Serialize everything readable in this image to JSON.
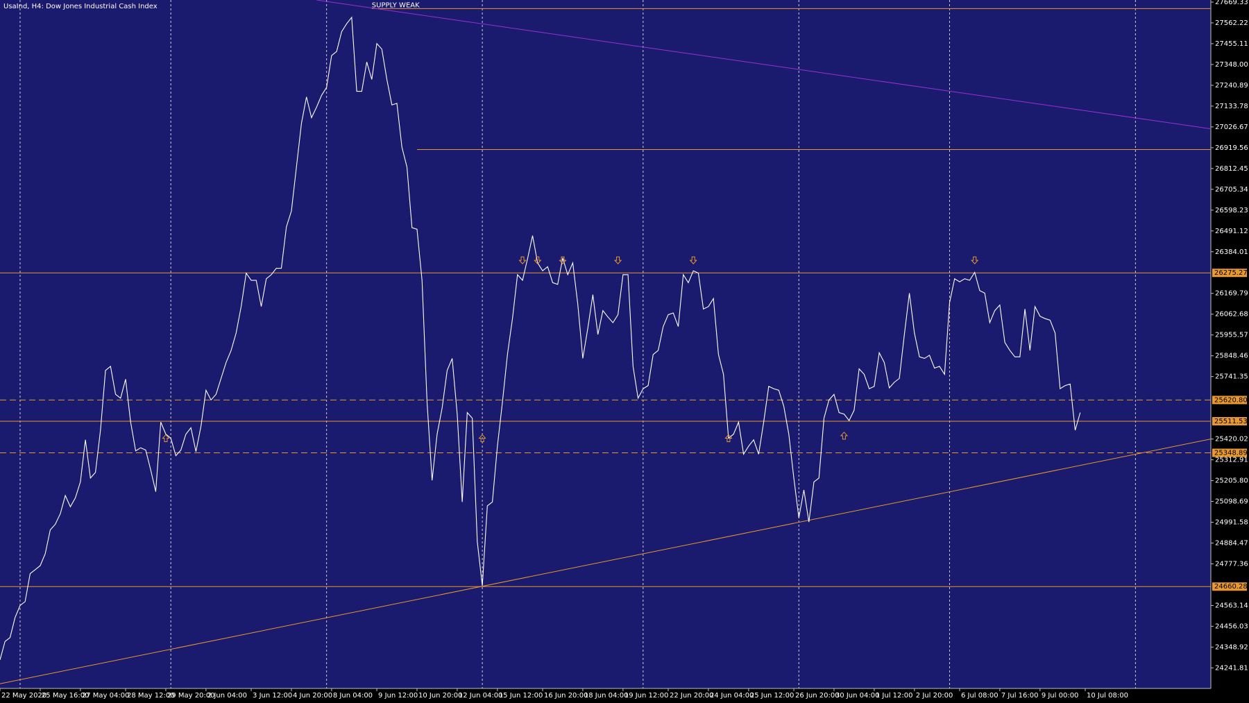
{
  "chart_data": {
    "type": "line",
    "title": "UsaInd, H4:  Dow Jones Industrial Cash Index",
    "color": "#ffffff",
    "xlim": [
      0,
      241
    ],
    "ylim": [
      24136,
      27680
    ],
    "values": [
      24283,
      24378,
      24398,
      24501,
      24563,
      24583,
      24727,
      24747,
      24768,
      24829,
      24952,
      24981,
      25035,
      25129,
      25071,
      25117,
      25199,
      25416,
      25219,
      25248,
      25465,
      25773,
      25794,
      25650,
      25630,
      25728,
      25507,
      25359,
      25375,
      25363,
      25260,
      25149,
      25507,
      25445,
      25424,
      25334,
      25363,
      25445,
      25478,
      25355,
      25486,
      25671,
      25621,
      25650,
      25732,
      25814,
      25876,
      25966,
      26102,
      26274,
      26237,
      26237,
      26102,
      26245,
      26266,
      26299,
      26299,
      26512,
      26594,
      26820,
      27045,
      27181,
      27074,
      27128,
      27189,
      27230,
      27394,
      27415,
      27517,
      27558,
      27591,
      27210,
      27210,
      27361,
      27271,
      27456,
      27427,
      27271,
      27140,
      27148,
      26922,
      26820,
      26508,
      26500,
      26237,
      25609,
      25207,
      25445,
      25580,
      25773,
      25835,
      25548,
      25096,
      25556,
      25527,
      24891,
      24665,
      25076,
      25096,
      25383,
      25609,
      25855,
      26040,
      26266,
      26237,
      26348,
      26467,
      26327,
      26286,
      26307,
      26225,
      26216,
      26352,
      26266,
      26327,
      26114,
      25835,
      25991,
      26163,
      25958,
      26081,
      26048,
      26019,
      26060,
      26266,
      26266,
      25794,
      25630,
      25679,
      25695,
      25855,
      25876,
      25999,
      26060,
      26069,
      25999,
      26266,
      26225,
      26286,
      26274,
      26089,
      26102,
      26143,
      25855,
      25753,
      25424,
      25445,
      25507,
      25342,
      25383,
      25416,
      25342,
      25507,
      25691,
      25679,
      25671,
      25589,
      25445,
      25219,
      25014,
      25158,
      24993,
      25199,
      25219,
      25527,
      25621,
      25650,
      25556,
      25548,
      25515,
      25568,
      25781,
      25753,
      25679,
      25691,
      25864,
      25814,
      25683,
      25712,
      25732,
      25958,
      26171,
      25966,
      25843,
      25835,
      25851,
      25785,
      25794,
      25753,
      26122,
      26245,
      26229,
      26245,
      26237,
      26278,
      26184,
      26171,
      26019,
      26081,
      26110,
      25917,
      25876,
      25843,
      25843,
      26089,
      25876,
      26102,
      26052,
      26040,
      26032,
      25966,
      25679,
      25695,
      25703,
      25465,
      25556
    ],
    "xticks": [
      {
        "value": 0,
        "label": "22 May 2020"
      },
      {
        "value": 8,
        "label": "25 May 16:00"
      },
      {
        "value": 16,
        "label": "27 May 04:00"
      },
      {
        "value": 25,
        "label": "28 May 12:00"
      },
      {
        "value": 33,
        "label": "29 May 20:00"
      },
      {
        "value": 41,
        "label": "2 Jun 04:00"
      },
      {
        "value": 50,
        "label": "3 Jun 12:00"
      },
      {
        "value": 58,
        "label": "4 Jun 20:00"
      },
      {
        "value": 66,
        "label": "8 Jun 04:00"
      },
      {
        "value": 75,
        "label": "9 Jun 12:00"
      },
      {
        "value": 83,
        "label": "10 Jun 20:00"
      },
      {
        "value": 91,
        "label": "12 Jun 04:00"
      },
      {
        "value": 99,
        "label": "15 Jun 12:00"
      },
      {
        "value": 108,
        "label": "16 Jun 20:00"
      },
      {
        "value": 116,
        "label": "18 Jun 04:00"
      },
      {
        "value": 124,
        "label": "19 Jun 12:00"
      },
      {
        "value": 133,
        "label": "22 Jun 20:00"
      },
      {
        "value": 141,
        "label": "24 Jun 04:00"
      },
      {
        "value": 149,
        "label": "25 Jun 12:00"
      },
      {
        "value": 158,
        "label": "26 Jun 20:00"
      },
      {
        "value": 166,
        "label": "30 Jun 04:00"
      },
      {
        "value": 174,
        "label": "1 Jul 12:00"
      },
      {
        "value": 182,
        "label": "2 Jul 20:00"
      },
      {
        "value": 191,
        "label": "6 Jul 08:00"
      },
      {
        "value": 199,
        "label": "7 Jul 16:00"
      },
      {
        "value": 207,
        "label": "9 Jul 00:00"
      },
      {
        "value": 216,
        "label": "10 Jul 08:00"
      }
    ],
    "xgrid": [
      4,
      34,
      65,
      96,
      128,
      159,
      189,
      226
    ],
    "yticks": [
      27669.33,
      27562.22,
      27455.11,
      {
        "value": 27348,
        "label": "27348.00"
      },
      27240.89,
      27133.78,
      27026.67,
      26919.56,
      26812.45,
      26705.34,
      26598.23,
      26491.12,
      26384.01,
      26169.79,
      26062.68,
      25955.57,
      25848.46,
      25741.35,
      25420.02,
      25312.91,
      {
        "value": 25205.8,
        "label": "25205.80"
      },
      25098.69,
      24991.58,
      24884.47,
      24777.36,
      24563.14,
      24456.03,
      24348.92,
      24241.81
    ],
    "level_color": "#e8982e",
    "levels": [
      {
        "value": 26275.27,
        "label": "26275.27",
        "dashed": false
      },
      {
        "value": 25620.8,
        "label": "25620.80",
        "dashed": true
      },
      {
        "value": 25511.53,
        "label": "25511.53",
        "dashed": false
      },
      {
        "value": 25348.89,
        "label": "25348.89",
        "dashed": true
      },
      {
        "value": 24660.28,
        "label": "24660.28",
        "dashed": false
      }
    ],
    "zones": [
      {
        "start": 74,
        "value": 27636,
        "annotation": "SUPPLY WEAK"
      },
      {
        "start": 83,
        "value": 26910
      }
    ],
    "down_arrows": {
      "x": [
        104,
        107,
        112,
        123,
        138,
        194
      ],
      "values": [
        26340,
        26340,
        26340,
        26340,
        26340,
        26340
      ]
    },
    "up_arrows": {
      "x": [
        33,
        96,
        145,
        168
      ],
      "values": [
        25424,
        25424,
        25424,
        25437
      ]
    },
    "trendlines": [
      {
        "color": "#9b30d0",
        "x": [
          63,
          241
        ],
        "values": [
          27680,
          27017
        ]
      },
      {
        "color": "#e8982e",
        "x": [
          0,
          241
        ],
        "values": [
          24160,
          25420
        ]
      }
    ]
  }
}
